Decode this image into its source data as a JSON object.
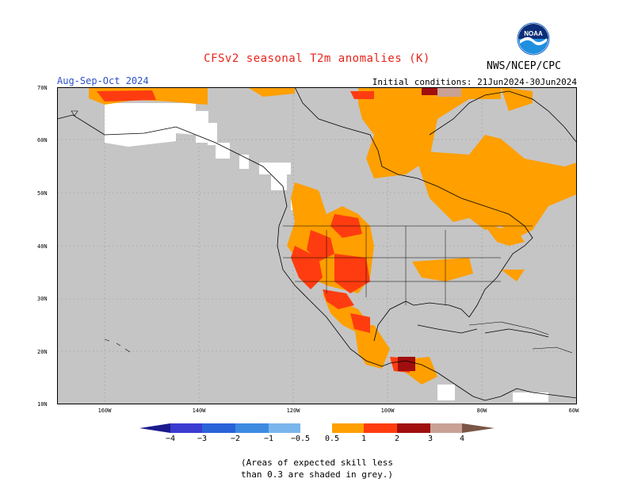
{
  "title": "CFSv2 seasonal T2m anomalies (K)",
  "period": "Aug-Sep-Oct 2024",
  "initial_conditions": "Initial conditions: 21Jun2024-30Jun2024",
  "agency": "NWS/NCEP/CPC",
  "logo_text": "NOAA",
  "lat_labels": [
    "70N",
    "60N",
    "50N",
    "40N",
    "30N",
    "20N",
    "10N"
  ],
  "lon_labels": [
    "160W",
    "140W",
    "120W",
    "100W",
    "80W",
    "60W"
  ],
  "colorbar": {
    "labels": [
      "−4",
      "−3",
      "−2",
      "−1",
      "−0.5",
      "0.5",
      "1",
      "2",
      "3",
      "4"
    ],
    "colors": {
      "neg_lt4": "#1a1a8c",
      "neg4_3": "#3b3bd1",
      "neg3_2": "#2a62d8",
      "neg2_1": "#3c8be0",
      "neg1_05": "#7ab6ec",
      "neutral": "#ffffff",
      "pos05_1": "#ff9f00",
      "pos1_2": "#ff3c10",
      "pos2_3": "#a00e0e",
      "pos3_4": "#c9a295",
      "pos_gt4": "#7a5646"
    }
  },
  "colors": {
    "no_skill": "#c5c5c5",
    "land_outline": "#000000"
  },
  "note_lines": [
    "(Areas of expected skill less",
    "than 0.3 are shaded in grey.)"
  ]
}
